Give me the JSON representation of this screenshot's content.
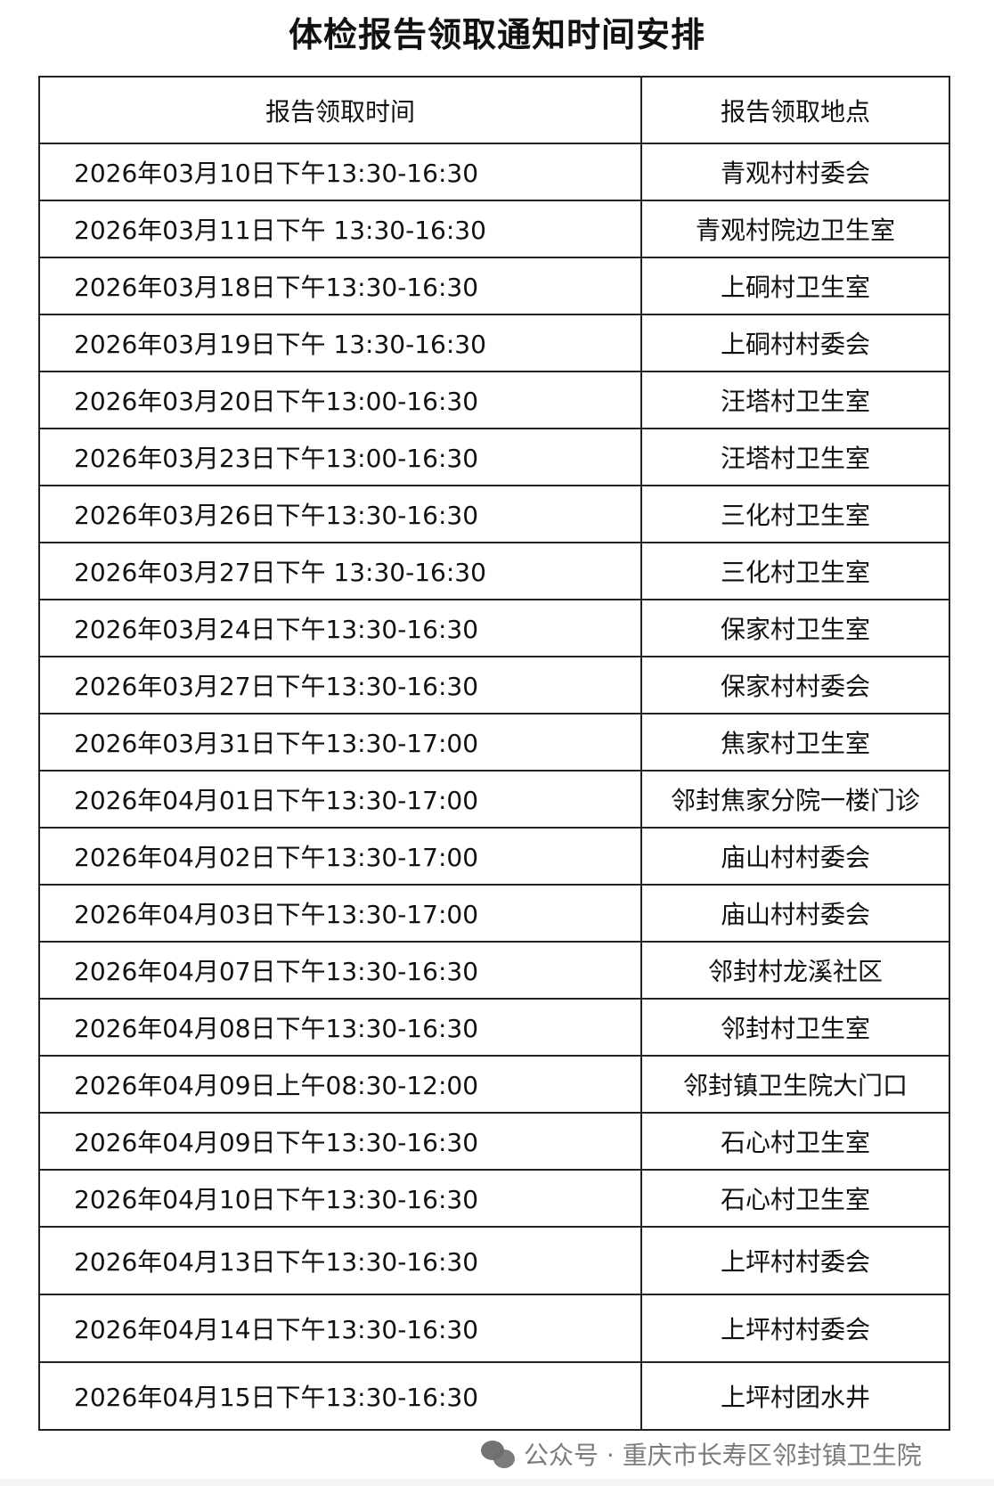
{
  "title": "体检报告领取通知时间安排",
  "headers": [
    "报告领取时间",
    "报告领取地点"
  ],
  "rows": [
    {
      "time": "2026年03月10日下午13:30-16:30",
      "place": "青观村村委会"
    },
    {
      "time": "2026年03月11日下午 13:30-16:30",
      "place": "青观村院边卫生室"
    },
    {
      "time": "2026年03月18日下午13:30-16:30",
      "place": "上硐村卫生室"
    },
    {
      "time": "2026年03月19日下午 13:30-16:30",
      "place": "上硐村村委会"
    },
    {
      "time": "2026年03月20日下午13:00-16:30",
      "place": "汪塔村卫生室"
    },
    {
      "time": "2026年03月23日下午13:00-16:30",
      "place": "汪塔村卫生室"
    },
    {
      "time": "2026年03月26日下午13:30-16:30",
      "place": "三化村卫生室"
    },
    {
      "time": "2026年03月27日下午 13:30-16:30",
      "place": "三化村卫生室"
    },
    {
      "time": "2026年03月24日下午13:30-16:30",
      "place": "保家村卫生室"
    },
    {
      "time": "2026年03月27日下午13:30-16:30",
      "place": "保家村村委会"
    },
    {
      "time": "2026年03月31日下午13:30-17:00",
      "place": "焦家村卫生室"
    },
    {
      "time": "2026年04月01日下午13:30-17:00",
      "place": "邻封焦家分院一楼门诊"
    },
    {
      "time": "2026年04月02日下午13:30-17:00",
      "place": "庙山村村委会"
    },
    {
      "time": "2026年04月03日下午13:30-17:00",
      "place": "庙山村村委会"
    },
    {
      "time": "2026年04月07日下午13:30-16:30",
      "place": "邻封村龙溪社区"
    },
    {
      "time": "2026年04月08日下午13:30-16:30",
      "place": "邻封村卫生室"
    },
    {
      "time": "2026年04月09日上午08:30-12:00",
      "place": "邻封镇卫生院大门口"
    },
    {
      "time": "2026年04月09日下午13:30-16:30",
      "place": "石心村卫生室"
    },
    {
      "time": "2026年04月10日下午13:30-16:30",
      "place": "石心村卫生室"
    },
    {
      "time": "2026年04月13日下午13:30-16:30",
      "place": "上坪村村委会"
    },
    {
      "time": "2026年04月14日下午13:30-16:30",
      "place": "上坪村村委会"
    },
    {
      "time": "2026年04月15日下午13:30-16:30",
      "place": "上坪村团水井"
    }
  ],
  "watermark": {
    "icon": "wechat-icon",
    "text": "公众号 · 重庆市长寿区邻封镇卫生院"
  }
}
